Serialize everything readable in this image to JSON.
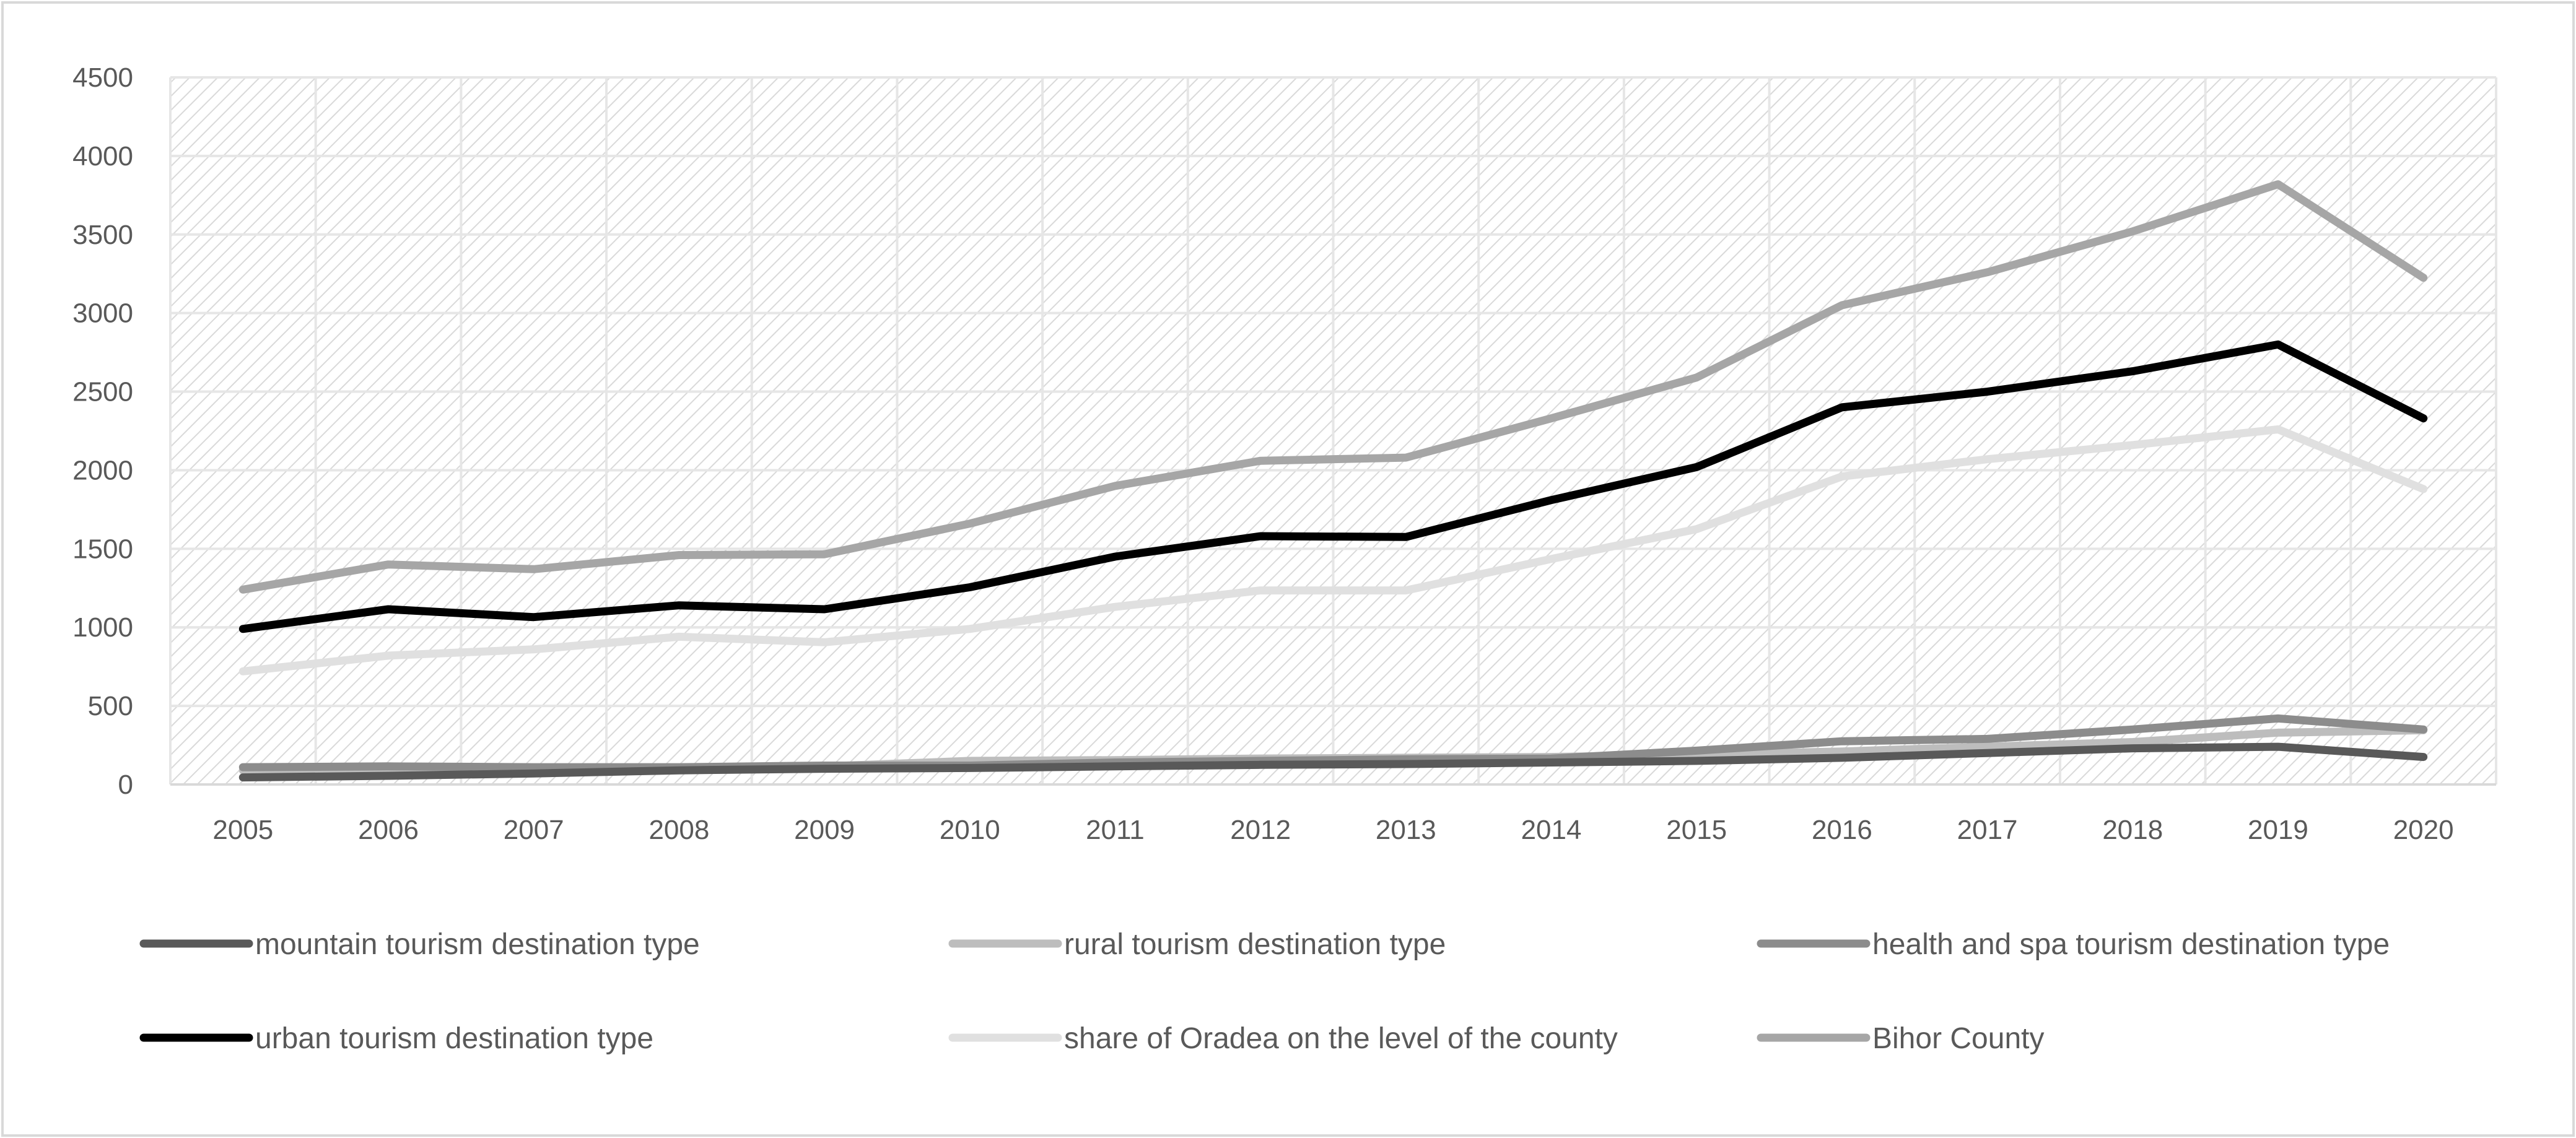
{
  "chart_data": {
    "type": "line",
    "title": "",
    "xlabel": "",
    "ylabel": "",
    "ylim": [
      0,
      4500
    ],
    "ytick_step": 500,
    "categories": [
      "2005",
      "2006",
      "2007",
      "2008",
      "2009",
      "2010",
      "2011",
      "2012",
      "2013",
      "2014",
      "2015",
      "2016",
      "2017",
      "2018",
      "2019",
      "2020"
    ],
    "grid": true,
    "legend_position": "bottom",
    "series": [
      {
        "name": "mountain tourism destination type",
        "color": "#595959",
        "values": [
          45,
          55,
          70,
          90,
          100,
          105,
          115,
          125,
          130,
          140,
          150,
          170,
          200,
          230,
          240,
          175
        ]
      },
      {
        "name": "rural tourism destination type",
        "color": "#bdbdbd",
        "values": [
          90,
          100,
          100,
          105,
          115,
          150,
          155,
          165,
          170,
          175,
          190,
          210,
          240,
          270,
          330,
          345
        ]
      },
      {
        "name": "health and spa tourism destination type",
        "color": "#8c8c8c",
        "values": [
          110,
          115,
          110,
          110,
          120,
          120,
          140,
          150,
          160,
          165,
          215,
          275,
          290,
          350,
          420,
          350
        ]
      },
      {
        "name": "urban tourism destination type",
        "color": "#000000",
        "values": [
          990,
          1115,
          1065,
          1140,
          1115,
          1255,
          1450,
          1580,
          1575,
          1810,
          2020,
          2400,
          2500,
          2630,
          2800,
          2330
        ]
      },
      {
        "name": "share of Oradea on the level of the county",
        "color": "#e0e0e0",
        "values": [
          720,
          820,
          860,
          940,
          905,
          990,
          1130,
          1235,
          1235,
          1435,
          1625,
          1960,
          2070,
          2160,
          2260,
          1880
        ]
      },
      {
        "name": "Bihor County",
        "color": "#a6a6a6",
        "values": [
          1240,
          1400,
          1370,
          1460,
          1465,
          1660,
          1900,
          2060,
          2080,
          2330,
          2590,
          3050,
          3260,
          3520,
          3820,
          3225
        ]
      }
    ]
  }
}
